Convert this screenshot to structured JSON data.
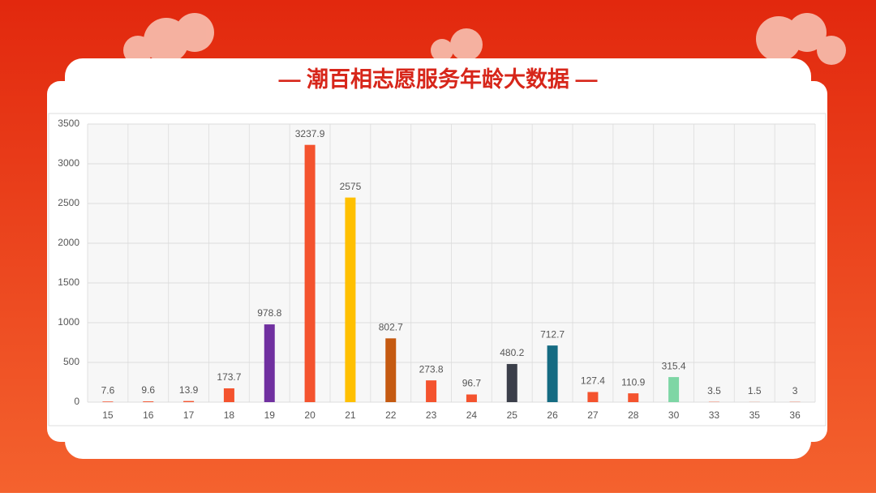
{
  "chart_data": {
    "type": "bar",
    "title": "— 潮百相志愿服务年龄大数据 —",
    "categories": [
      "15",
      "16",
      "17",
      "18",
      "19",
      "20",
      "21",
      "22",
      "23",
      "24",
      "25",
      "26",
      "27",
      "28",
      "30",
      "33",
      "35",
      "36"
    ],
    "values": [
      7.6,
      9.6,
      13.9,
      173.7,
      978.8,
      3237.9,
      2575,
      802.7,
      273.8,
      96.7,
      480.2,
      712.7,
      127.4,
      110.9,
      315.4,
      3.5,
      1.5,
      3
    ],
    "colors": [
      "#f4532e",
      "#f4532e",
      "#f4532e",
      "#f4532e",
      "#7030a0",
      "#f4532e",
      "#ffc000",
      "#c55a11",
      "#f4532e",
      "#f4532e",
      "#3b3f4a",
      "#156b82",
      "#f4532e",
      "#f4532e",
      "#7ed6a5",
      "#f4532e",
      "#f4532e",
      "#f4532e"
    ],
    "ylim": [
      0,
      3500
    ],
    "yticks": [
      0,
      500,
      1000,
      1500,
      2000,
      2500,
      3000,
      3500
    ],
    "grid": true
  }
}
